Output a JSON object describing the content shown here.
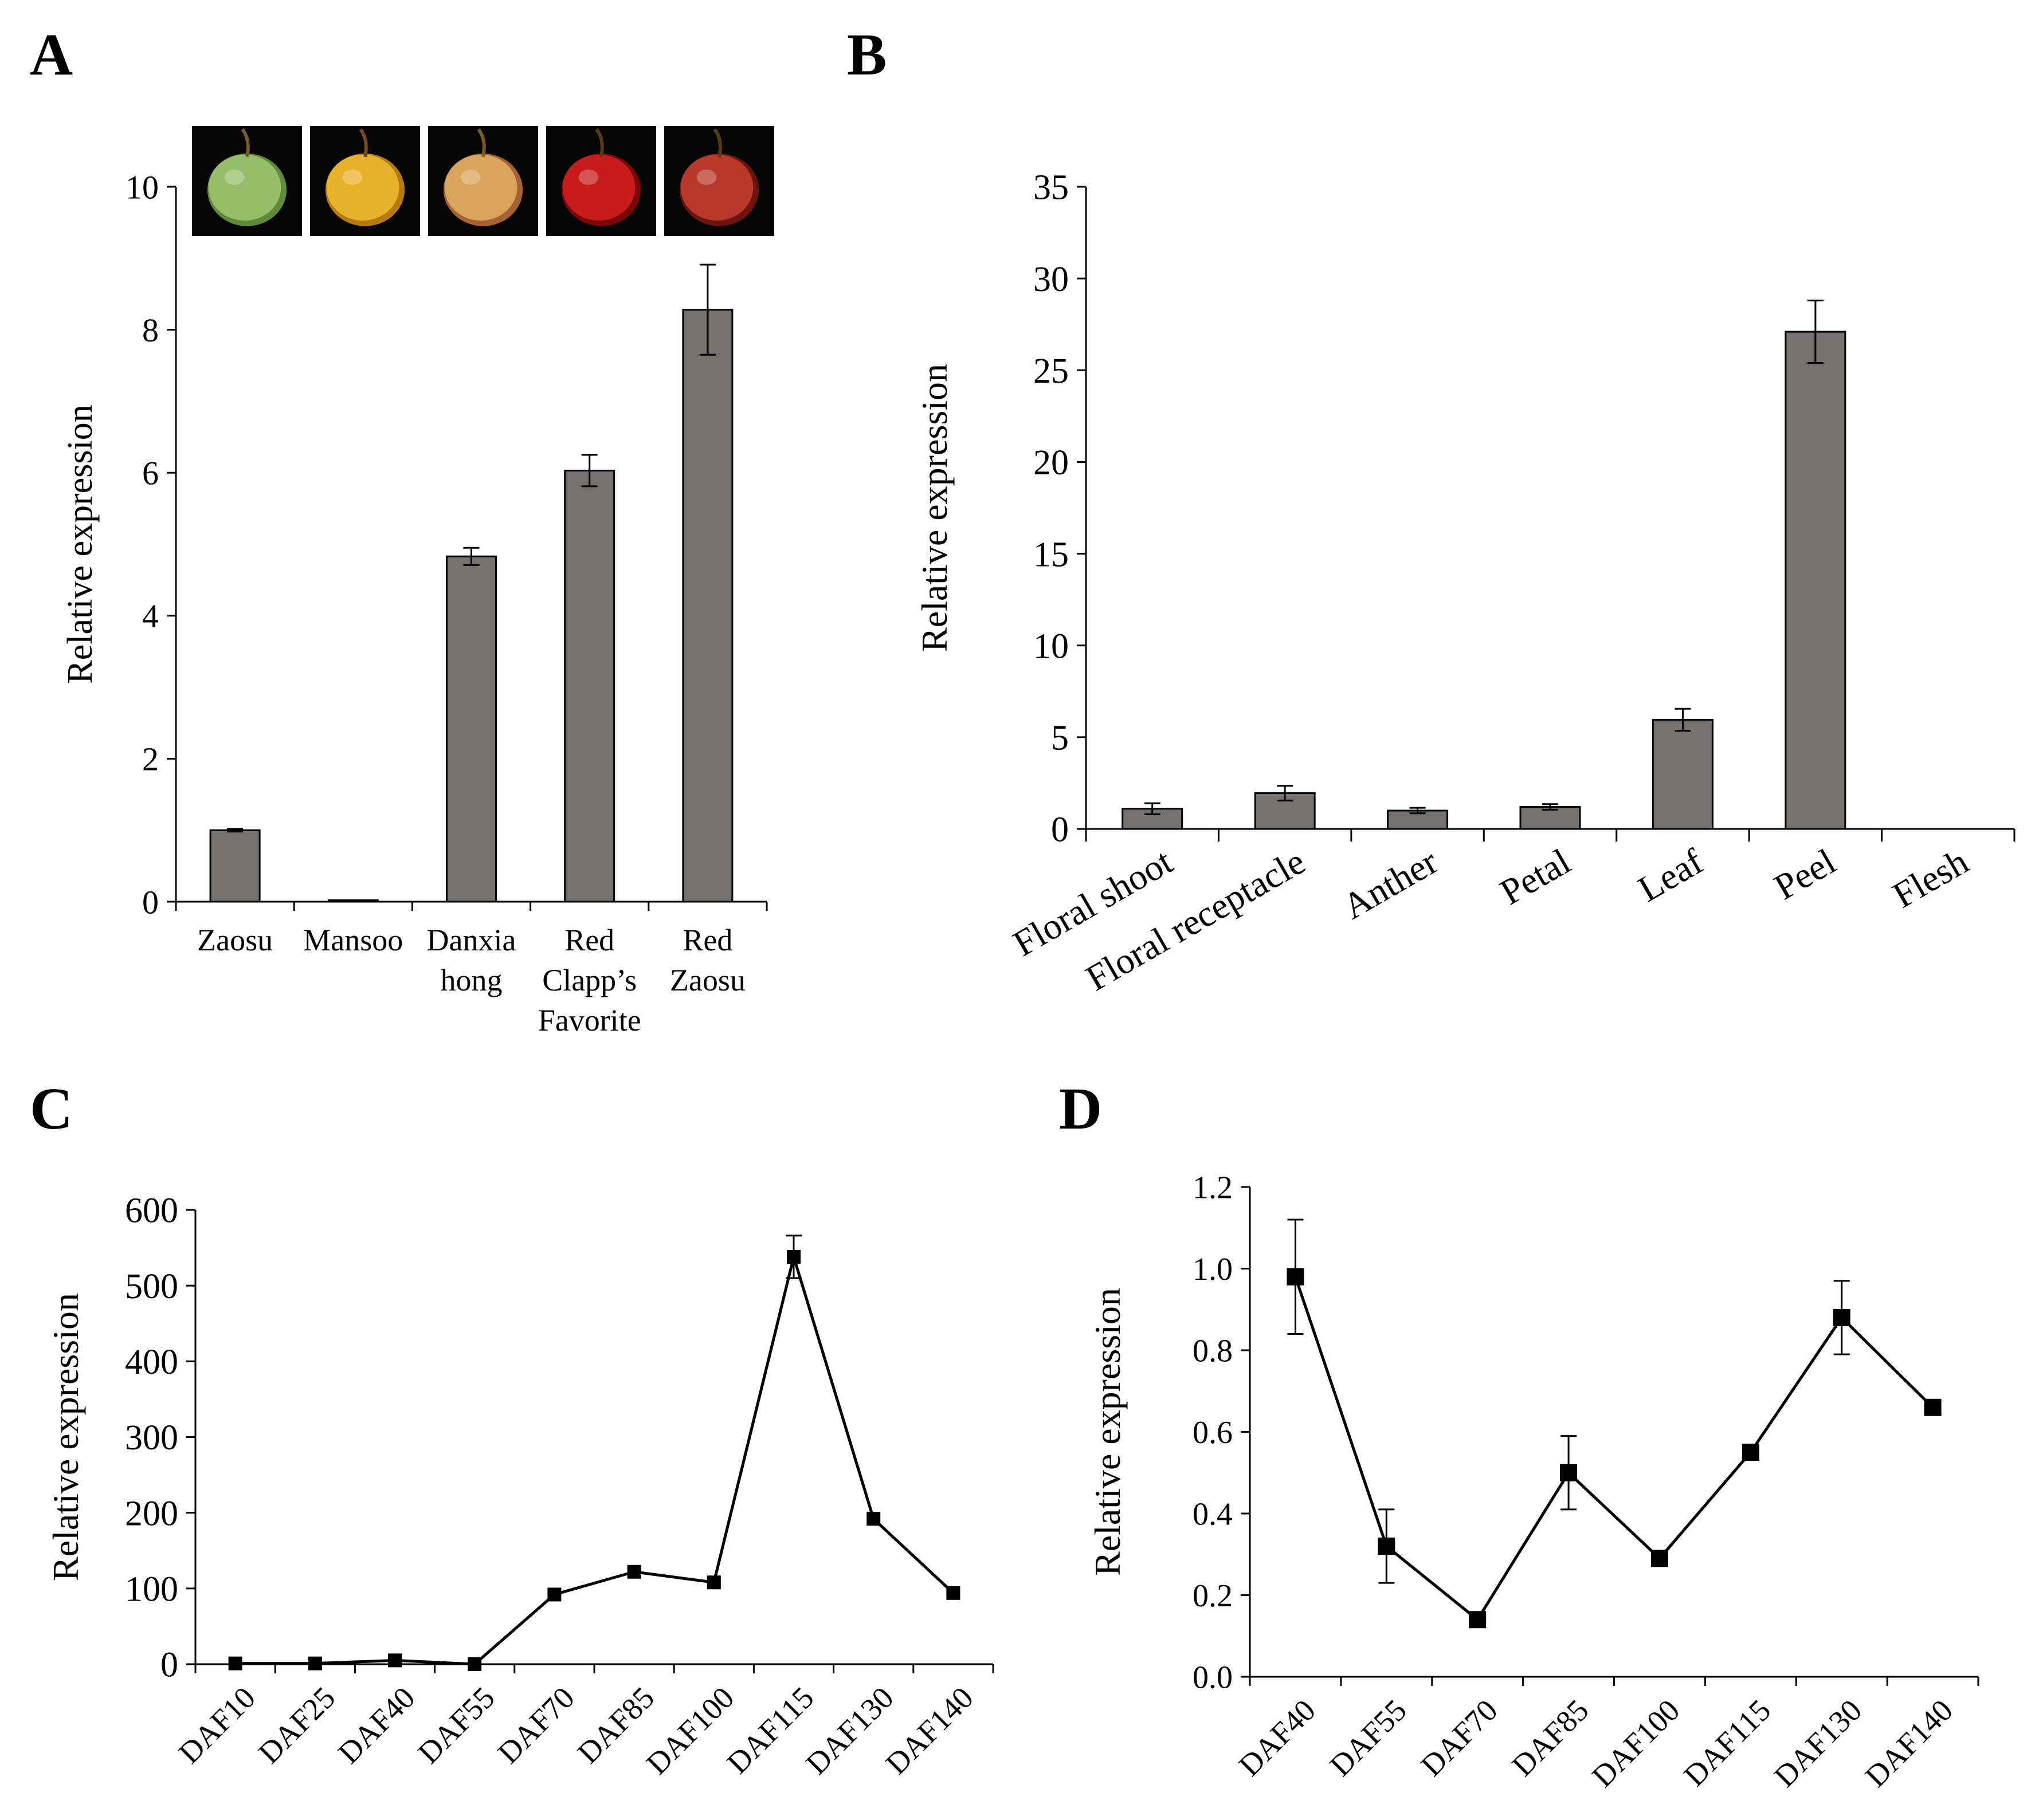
{
  "panels": [
    "A",
    "B",
    "C",
    "D"
  ],
  "colors": {
    "bar_fill": "#767171",
    "bar_stroke": "#000000",
    "line": "#000000",
    "marker": "#000000"
  },
  "photos": [
    {
      "name": "Zaosu",
      "body": "#96be6a",
      "shade": "#5f8a3c",
      "stem": "#7a5a2a"
    },
    {
      "name": "Mansoo",
      "body": "#e8b22c",
      "shade": "#b67a10",
      "stem": "#6e4a1e"
    },
    {
      "name": "Danxia hong",
      "body": "#d9a45c",
      "shade": "#a66236",
      "stem": "#7a5a2a"
    },
    {
      "name": "Red Clapp's Favorite",
      "body": "#c81c1c",
      "shade": "#7a0808",
      "stem": "#5a3a14"
    },
    {
      "name": "Red Zaosu",
      "body": "#b8382c",
      "shade": "#6c1410",
      "stem": "#5a3a14"
    }
  ],
  "chart_data": [
    {
      "panel": "A",
      "type": "bar",
      "ylabel": "Relative expression",
      "xlabel": "",
      "ylim": [
        0,
        10
      ],
      "yticks": [
        "0",
        "2",
        "4",
        "6",
        "8",
        "10"
      ],
      "category_lines": [
        [
          "Zaosu"
        ],
        [
          "Mansoo"
        ],
        [
          "Danxia",
          "hong"
        ],
        [
          "Red",
          "Clapp’s",
          "Favorite"
        ],
        [
          "Red",
          "Zaosu"
        ]
      ],
      "categories": [
        "Zaosu",
        "Mansoo",
        "Danxia hong",
        "Red Clapp’s Favorite",
        "Red Zaosu"
      ],
      "values": [
        1.0,
        0.02,
        4.83,
        6.03,
        8.28
      ],
      "errors": [
        0.02,
        0.0,
        0.12,
        0.22,
        0.63
      ]
    },
    {
      "panel": "B",
      "type": "bar",
      "ylabel": "Relative expression",
      "xlabel": "",
      "ylim": [
        0,
        35
      ],
      "yticks": [
        "0",
        "5",
        "10",
        "15",
        "20",
        "25",
        "30",
        "35"
      ],
      "categories": [
        "Floral shoot",
        "Floral receptacle",
        "Anther",
        "Petal",
        "Leaf",
        "Peel",
        "Flesh"
      ],
      "values": [
        1.1,
        1.95,
        1.0,
        1.2,
        5.95,
        27.1,
        0.0
      ],
      "errors": [
        0.3,
        0.4,
        0.15,
        0.15,
        0.6,
        1.7,
        0.0
      ]
    },
    {
      "panel": "C",
      "type": "line",
      "ylabel": "Relative expression",
      "xlabel": "",
      "ylim": [
        0,
        600
      ],
      "yticks": [
        "0",
        "100",
        "200",
        "300",
        "400",
        "500",
        "600"
      ],
      "categories": [
        "DAF10",
        "DAF25",
        "DAF40",
        "DAF55",
        "DAF70",
        "DAF85",
        "DAF100",
        "DAF115",
        "DAF130",
        "DAF140"
      ],
      "values": [
        1,
        1,
        5,
        0,
        92,
        122,
        108,
        538,
        192,
        94
      ],
      "errors": [
        0,
        0,
        0,
        0,
        0,
        0,
        0,
        28,
        0,
        0
      ]
    },
    {
      "panel": "D",
      "type": "line",
      "ylabel": "Relative expression",
      "xlabel": "",
      "ylim": [
        0,
        1.2
      ],
      "yticks": [
        "0.0",
        "0.2",
        "0.4",
        "0.6",
        "0.8",
        "1.0",
        "1.2"
      ],
      "categories": [
        "DAF40",
        "DAF55",
        "DAF70",
        "DAF85",
        "DAF100",
        "DAF115",
        "DAF130",
        "DAF140"
      ],
      "values": [
        0.98,
        0.32,
        0.14,
        0.5,
        0.29,
        0.55,
        0.88,
        0.66
      ],
      "errors": [
        0.14,
        0.09,
        0.0,
        0.09,
        0.0,
        0.0,
        0.09,
        0.0
      ]
    }
  ]
}
